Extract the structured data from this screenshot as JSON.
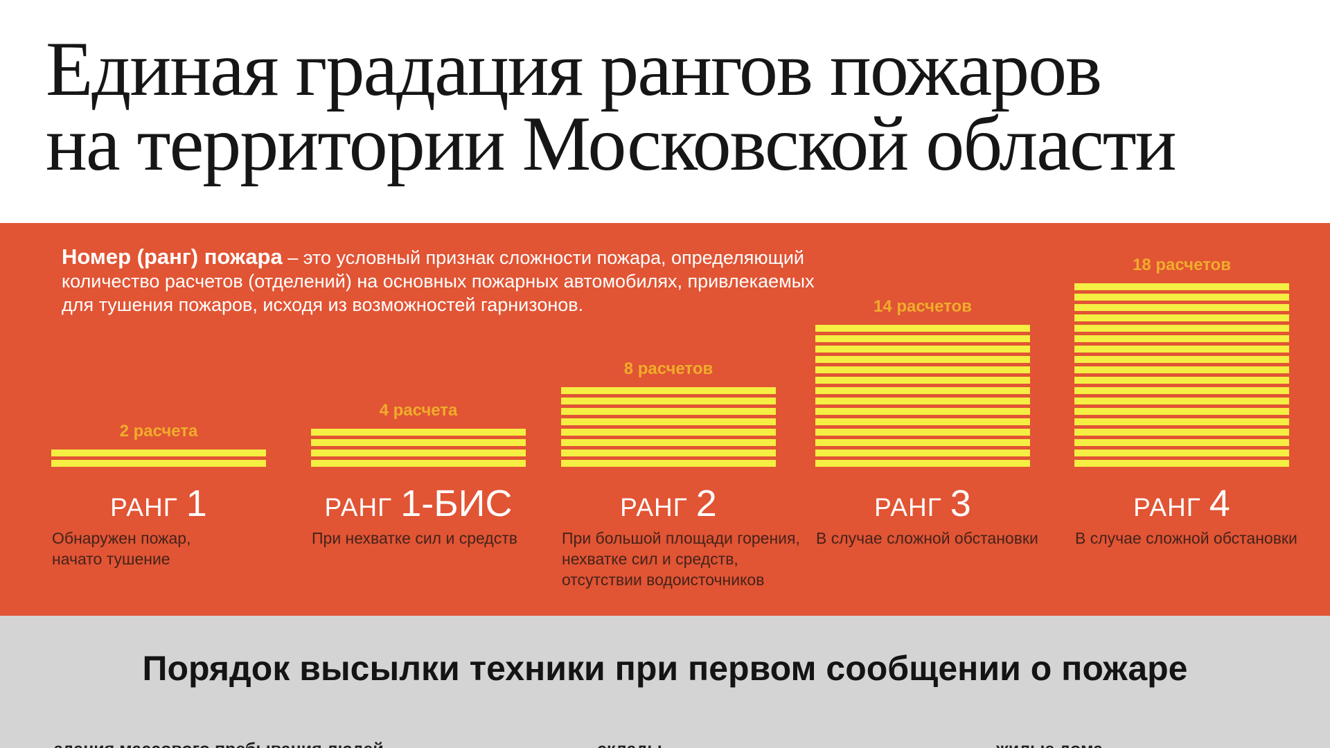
{
  "title": {
    "line1": "Единая градация рангов пожаров",
    "line2": "на территории Московской области"
  },
  "intro": {
    "lead": "Номер (ранг) пожара",
    "rest": " – это условный признак сложности пожара, определяющий количество расчетов (отделений) на основных пожарных автомобилях, привлекаемых для тушения пожаров, исходя из возможностей гарнизонов."
  },
  "chart_data": {
    "type": "bar",
    "title": "Единая градация рангов пожаров на территории Московской области",
    "categories": [
      "РАНГ 1",
      "РАНГ 1-БИС",
      "РАНГ 2",
      "РАНГ 3",
      "РАНГ 4"
    ],
    "values": [
      2,
      4,
      8,
      14,
      18
    ],
    "value_labels": [
      "2 расчета",
      "4 расчета",
      "8 расчетов",
      "14 расчетов",
      "18 расчетов"
    ],
    "descriptions": [
      "Обнаружен пожар, начато тушение",
      "При нехватке сил и средств",
      "При большой площади горения, нехватке сил и средств, отсутствии водоисточников",
      "В случае сложной обстановки",
      "В случае сложной обстановки"
    ],
    "unit": "расчет (отделение) на основных пожарных автомобилях",
    "bar_style": "stacked horizontal stripes, one stripe per расчет",
    "ylim": [
      0,
      18
    ],
    "grid": false,
    "legend": false
  },
  "ranks": [
    {
      "count_label": "2 расчета",
      "count": 2,
      "prefix": "РАНГ",
      "number": "1",
      "description": "Обнаружен пожар,\nначато тушение"
    },
    {
      "count_label": "4 расчета",
      "count": 4,
      "prefix": "РАНГ",
      "number": "1-БИС",
      "description": "При нехватке сил и средств"
    },
    {
      "count_label": "8 расчетов",
      "count": 8,
      "prefix": "РАНГ",
      "number": "2",
      "description": "При большой площади горения,\nнехватке сил и средств,\nотсутствии водоисточников"
    },
    {
      "count_label": "14 расчетов",
      "count": 14,
      "prefix": "РАНГ",
      "number": "3",
      "description": "В случае сложной обстановки"
    },
    {
      "count_label": "18 расчетов",
      "count": 18,
      "prefix": "РАНГ",
      "number": "4",
      "description": "В случае сложной обстановки"
    }
  ],
  "bottom": {
    "heading": "Порядок высылки техники при первом сообщении о пожаре",
    "items": [
      "здания массового пребывания людей",
      "склады",
      "жилые дома"
    ]
  },
  "colors": {
    "orange": "#e15434",
    "yellow": "#f5ee43",
    "amber": "#f0ad2b",
    "gray": "#d4d4d4",
    "darktext": "#44231a"
  }
}
